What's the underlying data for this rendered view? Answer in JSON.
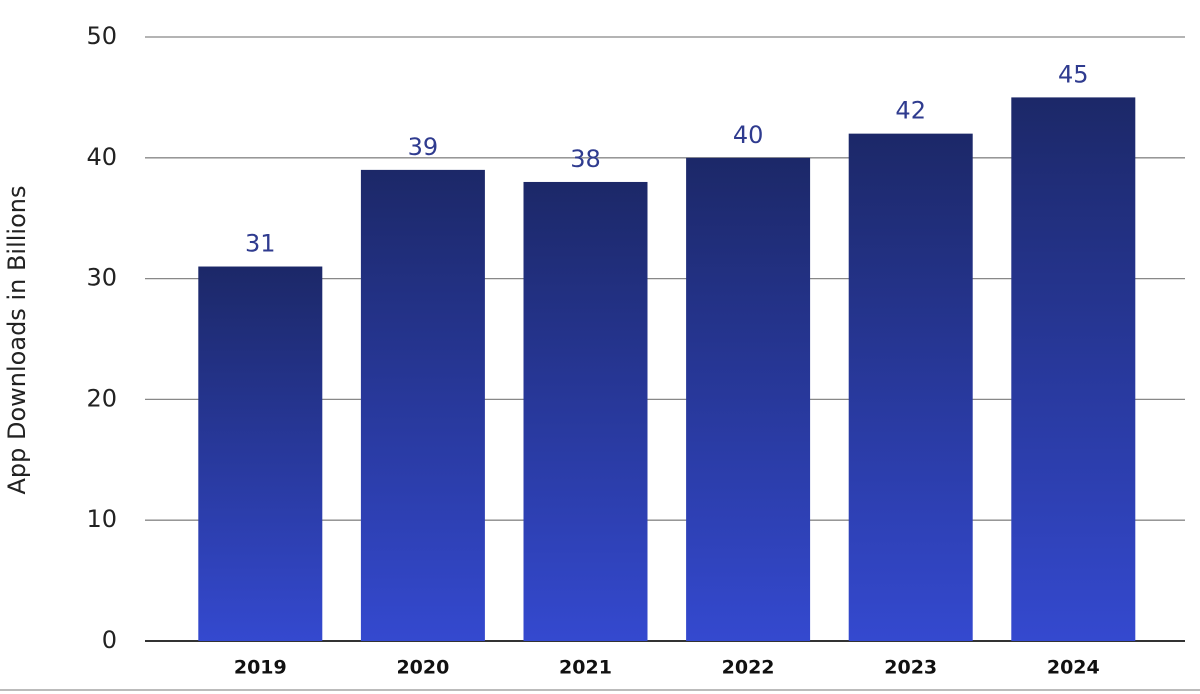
{
  "chart_data": {
    "type": "bar",
    "y_label": "App Downloads in Billions",
    "categories": [
      "2019",
      "2020",
      "2021",
      "2022",
      "2023",
      "2024"
    ],
    "values": [
      31,
      39,
      38,
      40,
      42,
      45
    ],
    "color": [
      "#1c2868",
      "#3449cf"
    ],
    "ylim": [
      0,
      50
    ],
    "yticks": [
      0,
      10,
      20,
      30,
      40,
      50
    ],
    "grid": true
  }
}
